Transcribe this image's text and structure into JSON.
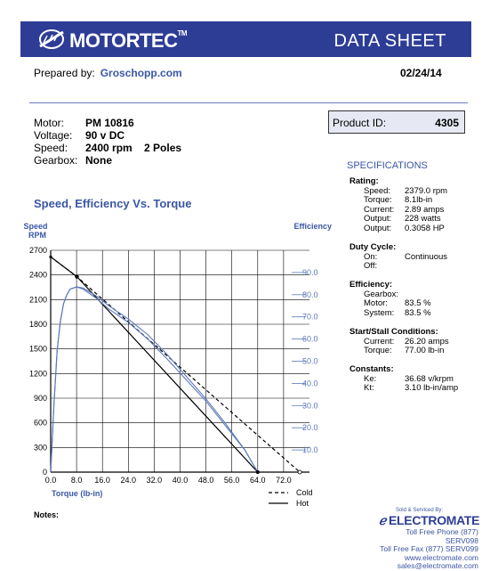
{
  "header": {
    "brand": "MOTORTEC",
    "trademark": "TM",
    "title": "DATA SHEET",
    "colors": {
      "banner": "#2d3d96",
      "accent": "#3a56a5",
      "chart_blue": "#5a78b8"
    },
    "icon": "motor-logo-icon"
  },
  "prepared": {
    "label": "Prepared by:",
    "by": "Groschopp.com",
    "date": "02/24/14"
  },
  "motor": [
    {
      "label": "Motor:",
      "value": "PM 10816"
    },
    {
      "label": "Voltage:",
      "value": "90 v DC"
    },
    {
      "label": "Speed:",
      "value": "2400 rpm    2 Poles"
    },
    {
      "label": "Gearbox:",
      "value": "None"
    }
  ],
  "product": {
    "label": "Product ID:",
    "value": "4305"
  },
  "specs": {
    "title": "SPECIFICATIONS",
    "rating": {
      "heading": "Rating:",
      "items": [
        {
          "k": "Speed:",
          "v": "2379.0 rpm"
        },
        {
          "k": "Torque:",
          "v": "8.1lb-in"
        },
        {
          "k": "Current:",
          "v": "2.89 amps"
        },
        {
          "k": "Output:",
          "v": "228 watts"
        },
        {
          "k": "Output:",
          "v": "0.3058 HP"
        }
      ]
    },
    "duty": {
      "heading": "Duty Cycle:",
      "items": [
        {
          "k": "On:",
          "v": "Continuous"
        },
        {
          "k": "Off:",
          "v": ""
        }
      ]
    },
    "efficiency": {
      "heading": "Efficiency:",
      "items": [
        {
          "k": "Gearbox:",
          "v": ""
        },
        {
          "k": "Motor:",
          "v": "83.5 %"
        },
        {
          "k": "System:",
          "v": "83.5 %"
        }
      ]
    },
    "stall": {
      "heading": "Start/Stall Conditions:",
      "items": [
        {
          "k": "Current:",
          "v": "26.20 amps"
        },
        {
          "k": "Torque:",
          "v": "77.00 lb-in"
        }
      ]
    },
    "constants": {
      "heading": "Constants:",
      "items": [
        {
          "k": "Ke:",
          "v": "36.68 v/krpm"
        },
        {
          "k": "Kt:",
          "v": "3.10 lb-in/amp"
        }
      ]
    }
  },
  "notes": {
    "label": "Notes:"
  },
  "footer": {
    "sold_by": "Sold & Serviced By:",
    "brand": "ELECTROMATE",
    "phone": "Toll Free Phone  (877) SERV098",
    "fax": "Toll Free Fax  (877) SERV099",
    "web": "www.electromate.com",
    "email": "sales@electromate.com"
  },
  "chart_data": {
    "type": "line",
    "title": "Speed, Efficiency Vs. Torque",
    "xlabel": "Torque  (lb-in)",
    "ylabel": "Speed\nRPM",
    "y2label": "Efficiency",
    "xlim": [
      0,
      80
    ],
    "ylim": [
      0,
      2700
    ],
    "y2lim": [
      0,
      100
    ],
    "x_ticks": [
      "0.0",
      "8.0",
      "16.0",
      "24.0",
      "32.0",
      "40.0",
      "48.0",
      "56.0",
      "64.0",
      "72.0"
    ],
    "y_ticks": [
      "0",
      "300",
      "600",
      "900",
      "1200",
      "1500",
      "1800",
      "2100",
      "2400",
      "2700"
    ],
    "y2_ticks": [
      "10.0",
      "20.0",
      "30.0",
      "40.0",
      "50.0",
      "60.0",
      "70.0",
      "80.0",
      "90.0"
    ],
    "grid": true,
    "legend": {
      "placement": "bottom-right",
      "entries": [
        "Cold",
        "Hot"
      ]
    },
    "series": [
      {
        "name": "Cold",
        "kind": "speed",
        "style": "dashed",
        "x": [
          0,
          8.1,
          77
        ],
        "y": [
          2620,
          2379,
          0
        ]
      },
      {
        "name": "Hot",
        "kind": "speed",
        "style": "solid",
        "x": [
          0,
          8.1,
          64
        ],
        "y": [
          2620,
          2379,
          0
        ]
      },
      {
        "kind": "efficiency",
        "style": "solid",
        "color": "#5a78b8",
        "x": [
          0,
          1,
          2,
          3,
          4,
          5,
          6,
          8,
          10,
          14,
          18,
          24,
          30,
          36,
          42,
          48,
          54,
          60,
          64
        ],
        "y": [
          0,
          30,
          55,
          68,
          76,
          80,
          82.5,
          83.5,
          83,
          79.5,
          75,
          69,
          62,
          53,
          43,
          33,
          22,
          10,
          0
        ]
      },
      {
        "kind": "efficiency",
        "style": "solid",
        "color": "#5a78b8",
        "x": [
          0,
          1,
          2,
          3,
          4,
          5,
          6,
          8,
          10,
          14,
          18,
          24,
          30,
          36,
          42,
          48,
          54,
          60,
          64
        ],
        "y": [
          0,
          30,
          55,
          68,
          76,
          80,
          82.5,
          83.5,
          82.5,
          78.5,
          73.5,
          67.5,
          60,
          51,
          41.5,
          32,
          21,
          10,
          0
        ]
      }
    ],
    "markers": [
      {
        "x": 8.1,
        "y": 2379
      }
    ]
  }
}
